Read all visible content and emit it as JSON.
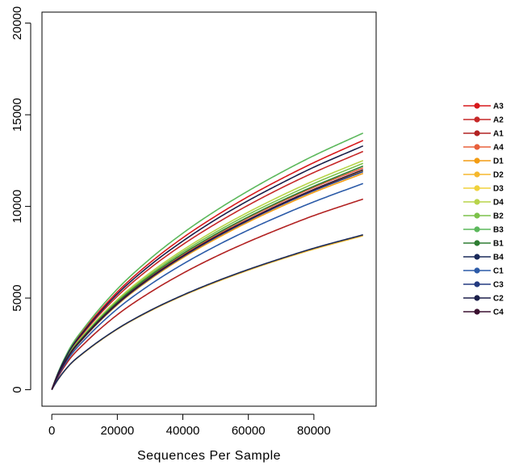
{
  "chart_data": {
    "type": "line",
    "title": "",
    "xlabel": "Sequences Per Sample",
    "ylabel": "",
    "xlim": [
      -3000,
      99000
    ],
    "ylim": [
      -900,
      20600
    ],
    "x_ticks": [
      0,
      20000,
      40000,
      60000,
      80000
    ],
    "x_tick_labels": [
      "0",
      "20000",
      "40000",
      "60000",
      "80000"
    ],
    "y_ticks": [
      0,
      5000,
      10000,
      15000,
      20000
    ],
    "y_tick_labels": [
      "0",
      "5000",
      "10000",
      "15000",
      "20000"
    ],
    "grid": false,
    "legend_position": "right",
    "x": [
      0,
      5000,
      10000,
      20000,
      30000,
      40000,
      50000,
      60000,
      70000,
      80000,
      95000
    ],
    "series": [
      {
        "name": "A3",
        "color": "#d7191c",
        "values": [
          0,
          2040,
          3300,
          5330,
          6930,
          8290,
          9470,
          10540,
          11500,
          12390,
          13600
        ]
      },
      {
        "name": "A2",
        "color": "#c62828",
        "values": [
          0,
          1950,
          3160,
          5100,
          6630,
          7920,
          9050,
          10070,
          11000,
          11850,
          13000
        ]
      },
      {
        "name": "A1",
        "color": "#b22222",
        "values": [
          0,
          1560,
          2530,
          4090,
          5310,
          6350,
          7260,
          8070,
          8810,
          9500,
          10400
        ]
      },
      {
        "name": "A4",
        "color": "#e8603c",
        "values": [
          0,
          1820,
          2940,
          4750,
          6170,
          7380,
          8430,
          9380,
          10240,
          11040,
          12100
        ]
      },
      {
        "name": "D1",
        "color": "#f39c12",
        "values": [
          0,
          1770,
          2870,
          4630,
          6020,
          7200,
          8220,
          9150,
          9990,
          10770,
          11800
        ]
      },
      {
        "name": "D2",
        "color": "#f5b82e",
        "values": [
          0,
          1260,
          2040,
          3300,
          4290,
          5130,
          5860,
          6520,
          7120,
          7670,
          8400
        ]
      },
      {
        "name": "D3",
        "color": "#f0d23c",
        "values": [
          0,
          1790,
          2900,
          4690,
          6090,
          7280,
          8320,
          9260,
          10110,
          10900,
          11950
        ]
      },
      {
        "name": "D4",
        "color": "#b8d44a",
        "values": [
          0,
          1880,
          3040,
          4910,
          6380,
          7620,
          8710,
          9690,
          10580,
          11400,
          12500
        ]
      },
      {
        "name": "B2",
        "color": "#7cc24a",
        "values": [
          0,
          1850,
          3000,
          4840,
          6290,
          7520,
          8590,
          9560,
          10430,
          11250,
          12350
        ]
      },
      {
        "name": "B3",
        "color": "#5cb85c",
        "values": [
          0,
          2100,
          3400,
          5490,
          7140,
          8540,
          9760,
          10850,
          11850,
          12770,
          14000
        ]
      },
      {
        "name": "B1",
        "color": "#2e7d32",
        "values": [
          0,
          1830,
          2960,
          4780,
          6210,
          7420,
          8480,
          9430,
          10300,
          11100,
          12200
        ]
      },
      {
        "name": "B4",
        "color": "#1a2a5a",
        "values": [
          0,
          1270,
          2060,
          3320,
          4320,
          5160,
          5900,
          6560,
          7160,
          7720,
          8450
        ]
      },
      {
        "name": "C1",
        "color": "#2c5ba8",
        "values": [
          0,
          1680,
          2730,
          4410,
          5730,
          6850,
          7830,
          8710,
          9510,
          10250,
          11250
        ]
      },
      {
        "name": "C3",
        "color": "#233a80",
        "values": [
          0,
          1790,
          2890,
          4670,
          6070,
          7260,
          8300,
          9230,
          10080,
          10860,
          11900
        ]
      },
      {
        "name": "C2",
        "color": "#1b1f4a",
        "values": [
          0,
          2000,
          3230,
          5220,
          6790,
          8110,
          9280,
          10320,
          11260,
          12140,
          13300
        ]
      },
      {
        "name": "C4",
        "color": "#3a1030",
        "values": [
          0,
          1800,
          2910,
          4700,
          6110,
          7300,
          8350,
          9280,
          10140,
          10930,
          12000
        ]
      }
    ]
  }
}
